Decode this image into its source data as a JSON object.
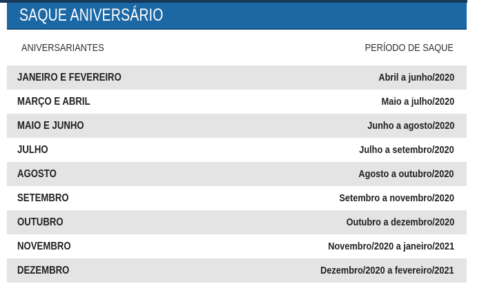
{
  "theme": {
    "header_bar_color": "#1C68A5",
    "header_bar_edge_color": "#14507E",
    "top_line_color": "#16395B",
    "stripe_color": "#E4E4E4",
    "text_color": "#1F1F1F",
    "title_text_color": "#FFFFFF"
  },
  "header": {
    "title": "SAQUE ANIVERSÁRIO"
  },
  "table": {
    "columns": [
      {
        "label": "ANIVERSARIANTES"
      },
      {
        "label": "PERÍODO DE SAQUE"
      }
    ],
    "rows": [
      {
        "aniversariantes": "JANEIRO E FEVEREIRO",
        "periodo": "Abril a junho/2020"
      },
      {
        "aniversariantes": "MARÇO E ABRIL",
        "periodo": "Maio a julho/2020"
      },
      {
        "aniversariantes": "MAIO E JUNHO",
        "periodo": "Junho a agosto/2020"
      },
      {
        "aniversariantes": "JULHO",
        "periodo": "Julho a setembro/2020"
      },
      {
        "aniversariantes": "AGOSTO",
        "periodo": "Agosto a outubro/2020"
      },
      {
        "aniversariantes": "SETEMBRO",
        "periodo": "Setembro a novembro/2020"
      },
      {
        "aniversariantes": "OUTUBRO",
        "periodo": "Outubro a dezembro/2020"
      },
      {
        "aniversariantes": "NOVEMBRO",
        "periodo": "Novembro/2020 a janeiro/2021"
      },
      {
        "aniversariantes": "DEZEMBRO",
        "periodo": "Dezembro/2020 a fevereiro/2021"
      }
    ]
  }
}
